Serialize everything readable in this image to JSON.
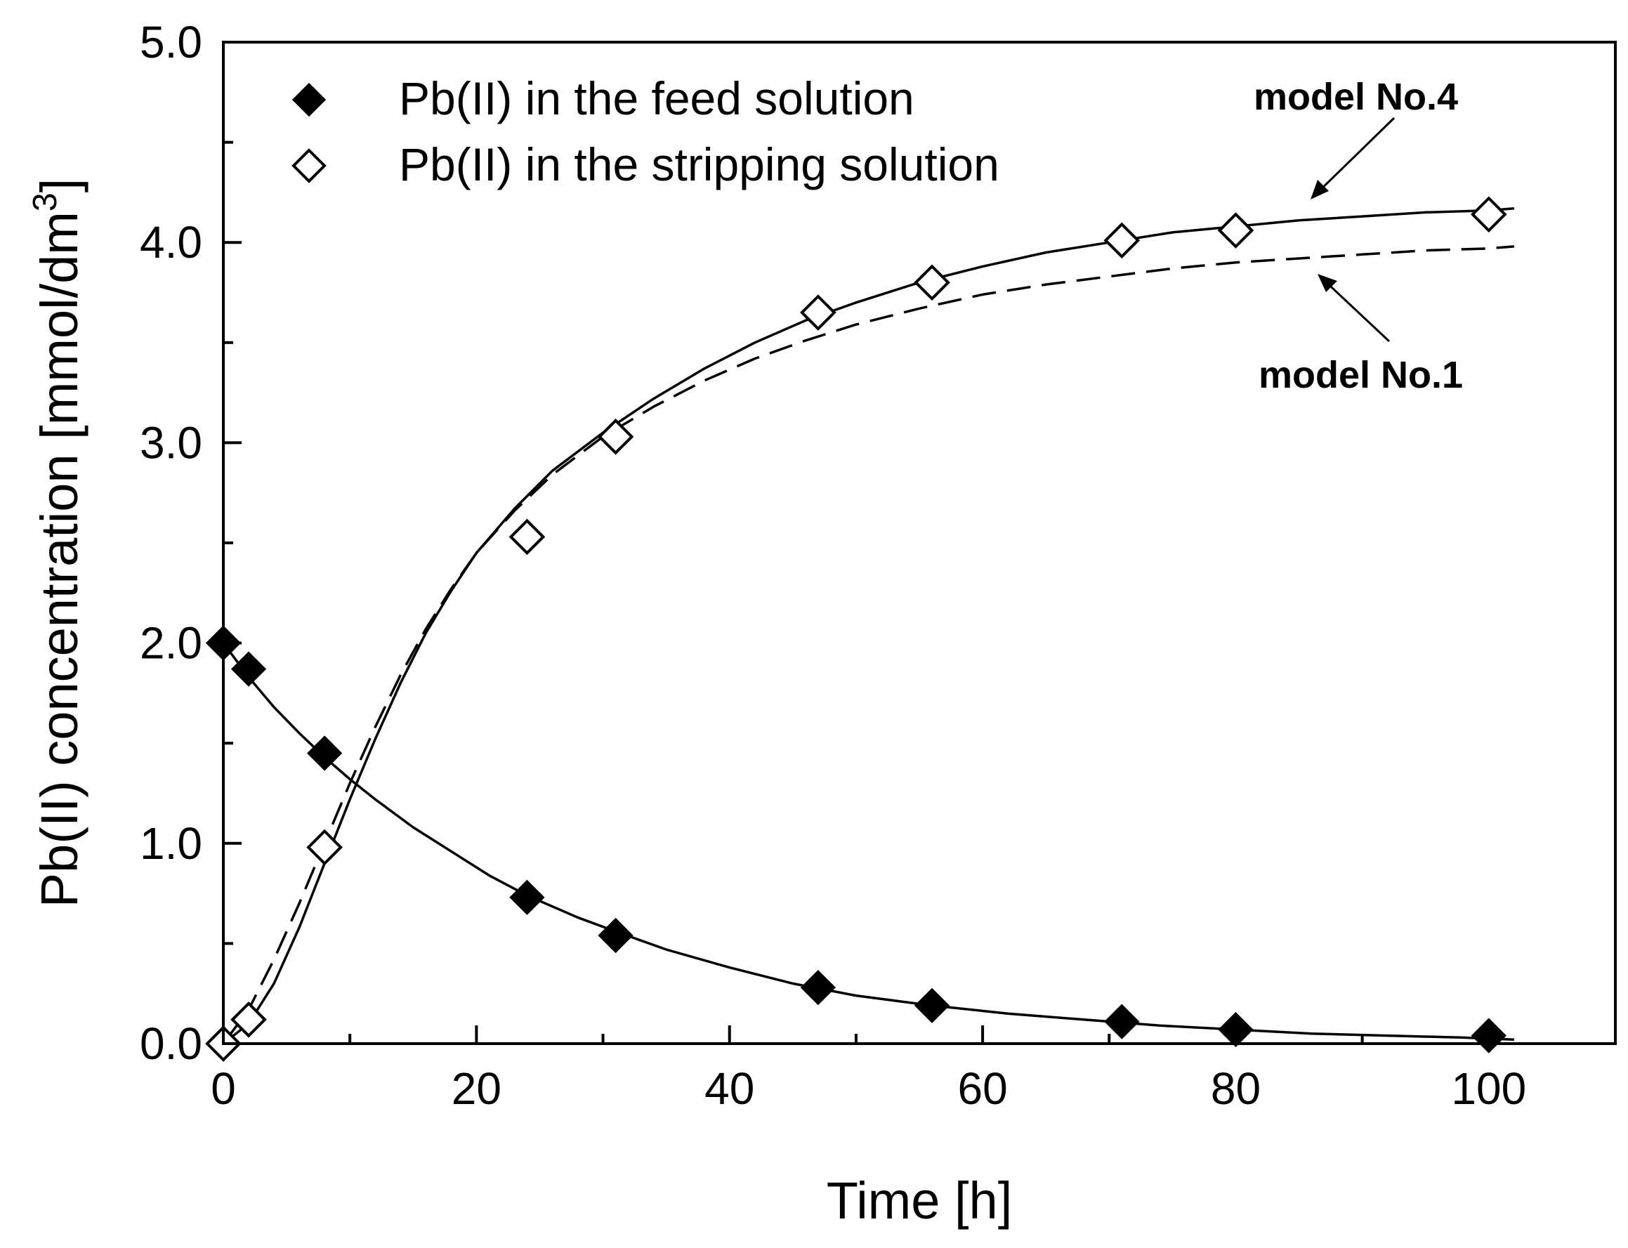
{
  "chart_data": {
    "type": "scatter",
    "title": "",
    "xlabel": "Time [h]",
    "ylabel_main": "Pb(II) concentration [mmol/dm",
    "ylabel_sup": "3",
    "ylabel_close": "]",
    "xlim": [
      0,
      110
    ],
    "ylim": [
      0,
      5
    ],
    "x_ticks": [
      0,
      20,
      40,
      60,
      80,
      100
    ],
    "x_tick_labels": [
      "0",
      "20",
      "40",
      "60",
      "80",
      "100"
    ],
    "y_ticks": [
      0,
      1,
      2,
      3,
      4,
      5
    ],
    "y_tick_labels": [
      "0.0",
      "1.0",
      "2.0",
      "3.0",
      "4.0",
      "5.0"
    ],
    "grid": false,
    "legend_position": "top-left",
    "series": [
      {
        "name": "Pb(II) in the feed solution",
        "marker": "filled-diamond",
        "color": "#000000",
        "x": [
          0,
          2,
          8,
          24,
          31,
          47,
          56,
          71,
          80,
          100
        ],
        "y": [
          2.0,
          1.87,
          1.45,
          0.73,
          0.54,
          0.28,
          0.19,
          0.11,
          0.07,
          0.04
        ]
      },
      {
        "name": "Pb(II) in the stripping solution",
        "marker": "open-diamond",
        "color": "#000000",
        "x": [
          0,
          2,
          8,
          24,
          31,
          47,
          56,
          71,
          80,
          100
        ],
        "y": [
          0.0,
          0.12,
          0.98,
          2.53,
          3.03,
          3.65,
          3.8,
          4.01,
          4.06,
          4.14
        ]
      }
    ],
    "curves": [
      {
        "name": "model No.4",
        "style": "solid",
        "x": [
          0,
          2,
          4,
          6,
          8,
          10,
          12,
          14,
          16,
          18,
          20,
          23,
          26,
          30,
          34,
          38,
          42,
          46,
          50,
          55,
          60,
          65,
          70,
          75,
          80,
          85,
          90,
          95,
          100,
          102
        ],
        "y": [
          0.0,
          0.1,
          0.3,
          0.58,
          0.9,
          1.22,
          1.52,
          1.8,
          2.05,
          2.26,
          2.45,
          2.67,
          2.86,
          3.05,
          3.22,
          3.37,
          3.5,
          3.61,
          3.7,
          3.8,
          3.88,
          3.95,
          4.0,
          4.05,
          4.08,
          4.11,
          4.13,
          4.15,
          4.16,
          4.17
        ]
      },
      {
        "name": "model No.1",
        "style": "dashed",
        "x": [
          0,
          2,
          4,
          6,
          8,
          10,
          12,
          14,
          16,
          18,
          20,
          23,
          26,
          30,
          34,
          38,
          42,
          46,
          50,
          55,
          60,
          65,
          70,
          75,
          80,
          85,
          90,
          95,
          100,
          102
        ],
        "y": [
          0.0,
          0.17,
          0.42,
          0.7,
          1.0,
          1.3,
          1.58,
          1.84,
          2.07,
          2.27,
          2.45,
          2.66,
          2.84,
          3.03,
          3.18,
          3.31,
          3.42,
          3.51,
          3.59,
          3.67,
          3.74,
          3.79,
          3.83,
          3.87,
          3.9,
          3.92,
          3.94,
          3.96,
          3.97,
          3.98
        ]
      },
      {
        "name": "feed fit",
        "style": "solid",
        "x": [
          0,
          2,
          4,
          6,
          8,
          10,
          12,
          15,
          18,
          21,
          24,
          28,
          31,
          35,
          40,
          45,
          50,
          56,
          62,
          68,
          74,
          80,
          86,
          92,
          98,
          102
        ],
        "y": [
          2.0,
          1.83,
          1.68,
          1.55,
          1.43,
          1.32,
          1.22,
          1.08,
          0.96,
          0.84,
          0.74,
          0.63,
          0.56,
          0.47,
          0.38,
          0.3,
          0.24,
          0.19,
          0.15,
          0.12,
          0.09,
          0.07,
          0.05,
          0.04,
          0.03,
          0.02
        ]
      }
    ],
    "annotations": [
      {
        "text": "model No.4",
        "points_to": "model No.4",
        "at_x": 86,
        "at_y": 4.1,
        "placement": "upper-right"
      },
      {
        "text": "model No.1",
        "points_to": "model No.1",
        "at_x": 86,
        "at_y": 3.85,
        "placement": "lower-right"
      }
    ]
  }
}
